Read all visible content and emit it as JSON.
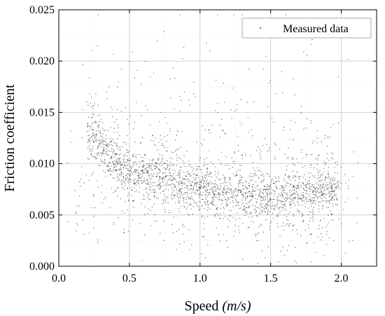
{
  "chart_data": {
    "type": "scatter",
    "title": "",
    "xlabel_main": "Speed ",
    "xlabel_unit": "(m/s)",
    "ylabel": "Friction coefficient",
    "xlim": [
      0.0,
      2.25
    ],
    "ylim": [
      0.0,
      0.025
    ],
    "x_ticks": [
      "0.0",
      "0.5",
      "1.0",
      "1.5",
      "2.0"
    ],
    "y_ticks": [
      "0.000",
      "0.005",
      "0.010",
      "0.015",
      "0.020",
      "0.025"
    ],
    "grid": true,
    "legend_position": "top-right",
    "series": [
      {
        "name": "Measured data",
        "color": "#000000",
        "marker": "dot",
        "trend": {
          "x": [
            0.2,
            0.3,
            0.4,
            0.5,
            0.6,
            0.8,
            1.0,
            1.2,
            1.4,
            1.6,
            1.8,
            1.95
          ],
          "y": [
            0.0135,
            0.0118,
            0.01,
            0.0092,
            0.0088,
            0.0082,
            0.0076,
            0.0072,
            0.0069,
            0.0068,
            0.0071,
            0.0075
          ]
        },
        "range_x": [
          0.05,
          2.12
        ],
        "range_y": [
          0.0,
          0.0245
        ]
      }
    ]
  }
}
